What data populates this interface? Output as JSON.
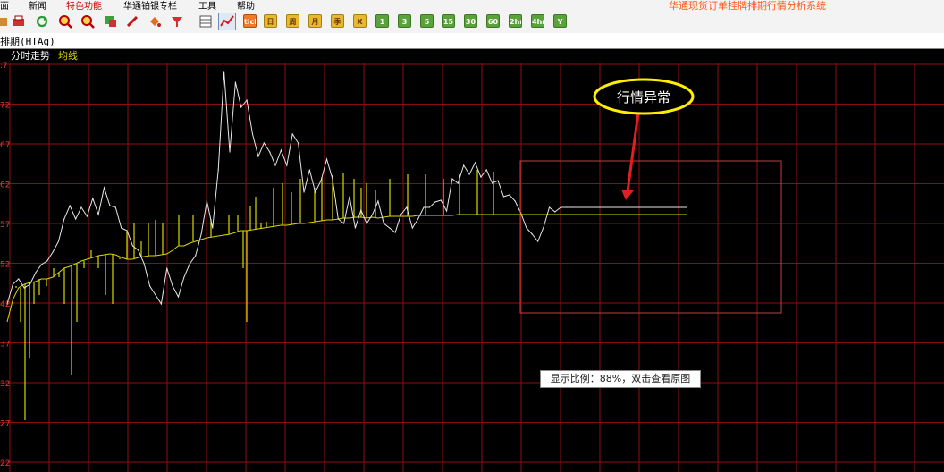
{
  "menu": {
    "items": [
      "面",
      "新闻",
      "特色功能",
      "华通铂银专栏",
      "工具",
      "帮助"
    ],
    "app_title": "华通现货订单挂牌排期行情分析系统"
  },
  "toolbar": {
    "buttons": [
      "tick",
      "日",
      "周",
      "月",
      "季",
      "X",
      "1",
      "3",
      "5",
      "15",
      "30",
      "60",
      "2hr",
      "4hr",
      "Y"
    ]
  },
  "header": {
    "title": "排期(HTAg)"
  },
  "legend": {
    "label": "分时走势",
    "avg_label": "均线"
  },
  "y_labels": [
    ".7",
    "72",
    "67",
    "62",
    "57",
    "52",
    "42",
    "37",
    "32",
    "27",
    "22"
  ],
  "annotation": {
    "label": "行情异常"
  },
  "tooltip": {
    "text": "显示比例：88%，双击查看原图"
  },
  "colors": {
    "grid": "#8c0f0f",
    "price": "#e8e8e8",
    "avg": "#d8d800",
    "axis_text": "#e03c3c",
    "box": "#c04040",
    "arrow": "#e02020",
    "ellipse": "#ffee00"
  },
  "chart_data": {
    "type": "line",
    "series": [
      {
        "values": [
          340,
          318,
          312,
          322,
          318,
          305,
          296,
          292,
          282,
          270,
          245,
          230,
          245,
          232,
          242,
          222,
          240,
          210,
          230,
          232,
          255,
          258,
          275,
          280,
          295,
          320,
          330,
          340,
          300,
          320,
          332,
          310,
          295,
          286,
          262,
          225,
          255,
          190,
          80,
          170,
          92,
          120,
          112,
          150,
          175,
          160,
          170,
          185,
          168,
          185,
          150,
          160,
          215,
          190,
          215,
          202,
          178,
          200,
          245,
          250,
          220,
          255,
          235,
          250,
          240,
          225,
          250,
          255,
          260,
          240,
          232,
          255,
          245,
          232,
          232,
          226,
          224,
          236,
          200,
          205,
          185,
          195,
          182,
          198,
          190,
          205,
          202,
          220,
          218,
          225,
          238,
          255,
          262,
          270,
          254,
          232,
          237,
          232,
          232,
          232
        ]
      },
      {
        "values": [
          360,
          335,
          322,
          318,
          316,
          315,
          312,
          312,
          310,
          305,
          300,
          298,
          295,
          292,
          290,
          288,
          286,
          285,
          284,
          285,
          288,
          290,
          290,
          288,
          287,
          286,
          286,
          285,
          284,
          280,
          275,
          275,
          272,
          270,
          268,
          266,
          265,
          264,
          263,
          262,
          260,
          258,
          258,
          257,
          256,
          255,
          254,
          253,
          252,
          252,
          251,
          250,
          250,
          249,
          248,
          247,
          246,
          246,
          245,
          244,
          244,
          243,
          243,
          244,
          243,
          244,
          243,
          242,
          242,
          242,
          242,
          242,
          241,
          241,
          241,
          241,
          241,
          241,
          241,
          240,
          240,
          240,
          240,
          240,
          240,
          240,
          240,
          240,
          240,
          240,
          240,
          240,
          240,
          240,
          240,
          240,
          240,
          240,
          240,
          240
        ]
      }
    ]
  }
}
